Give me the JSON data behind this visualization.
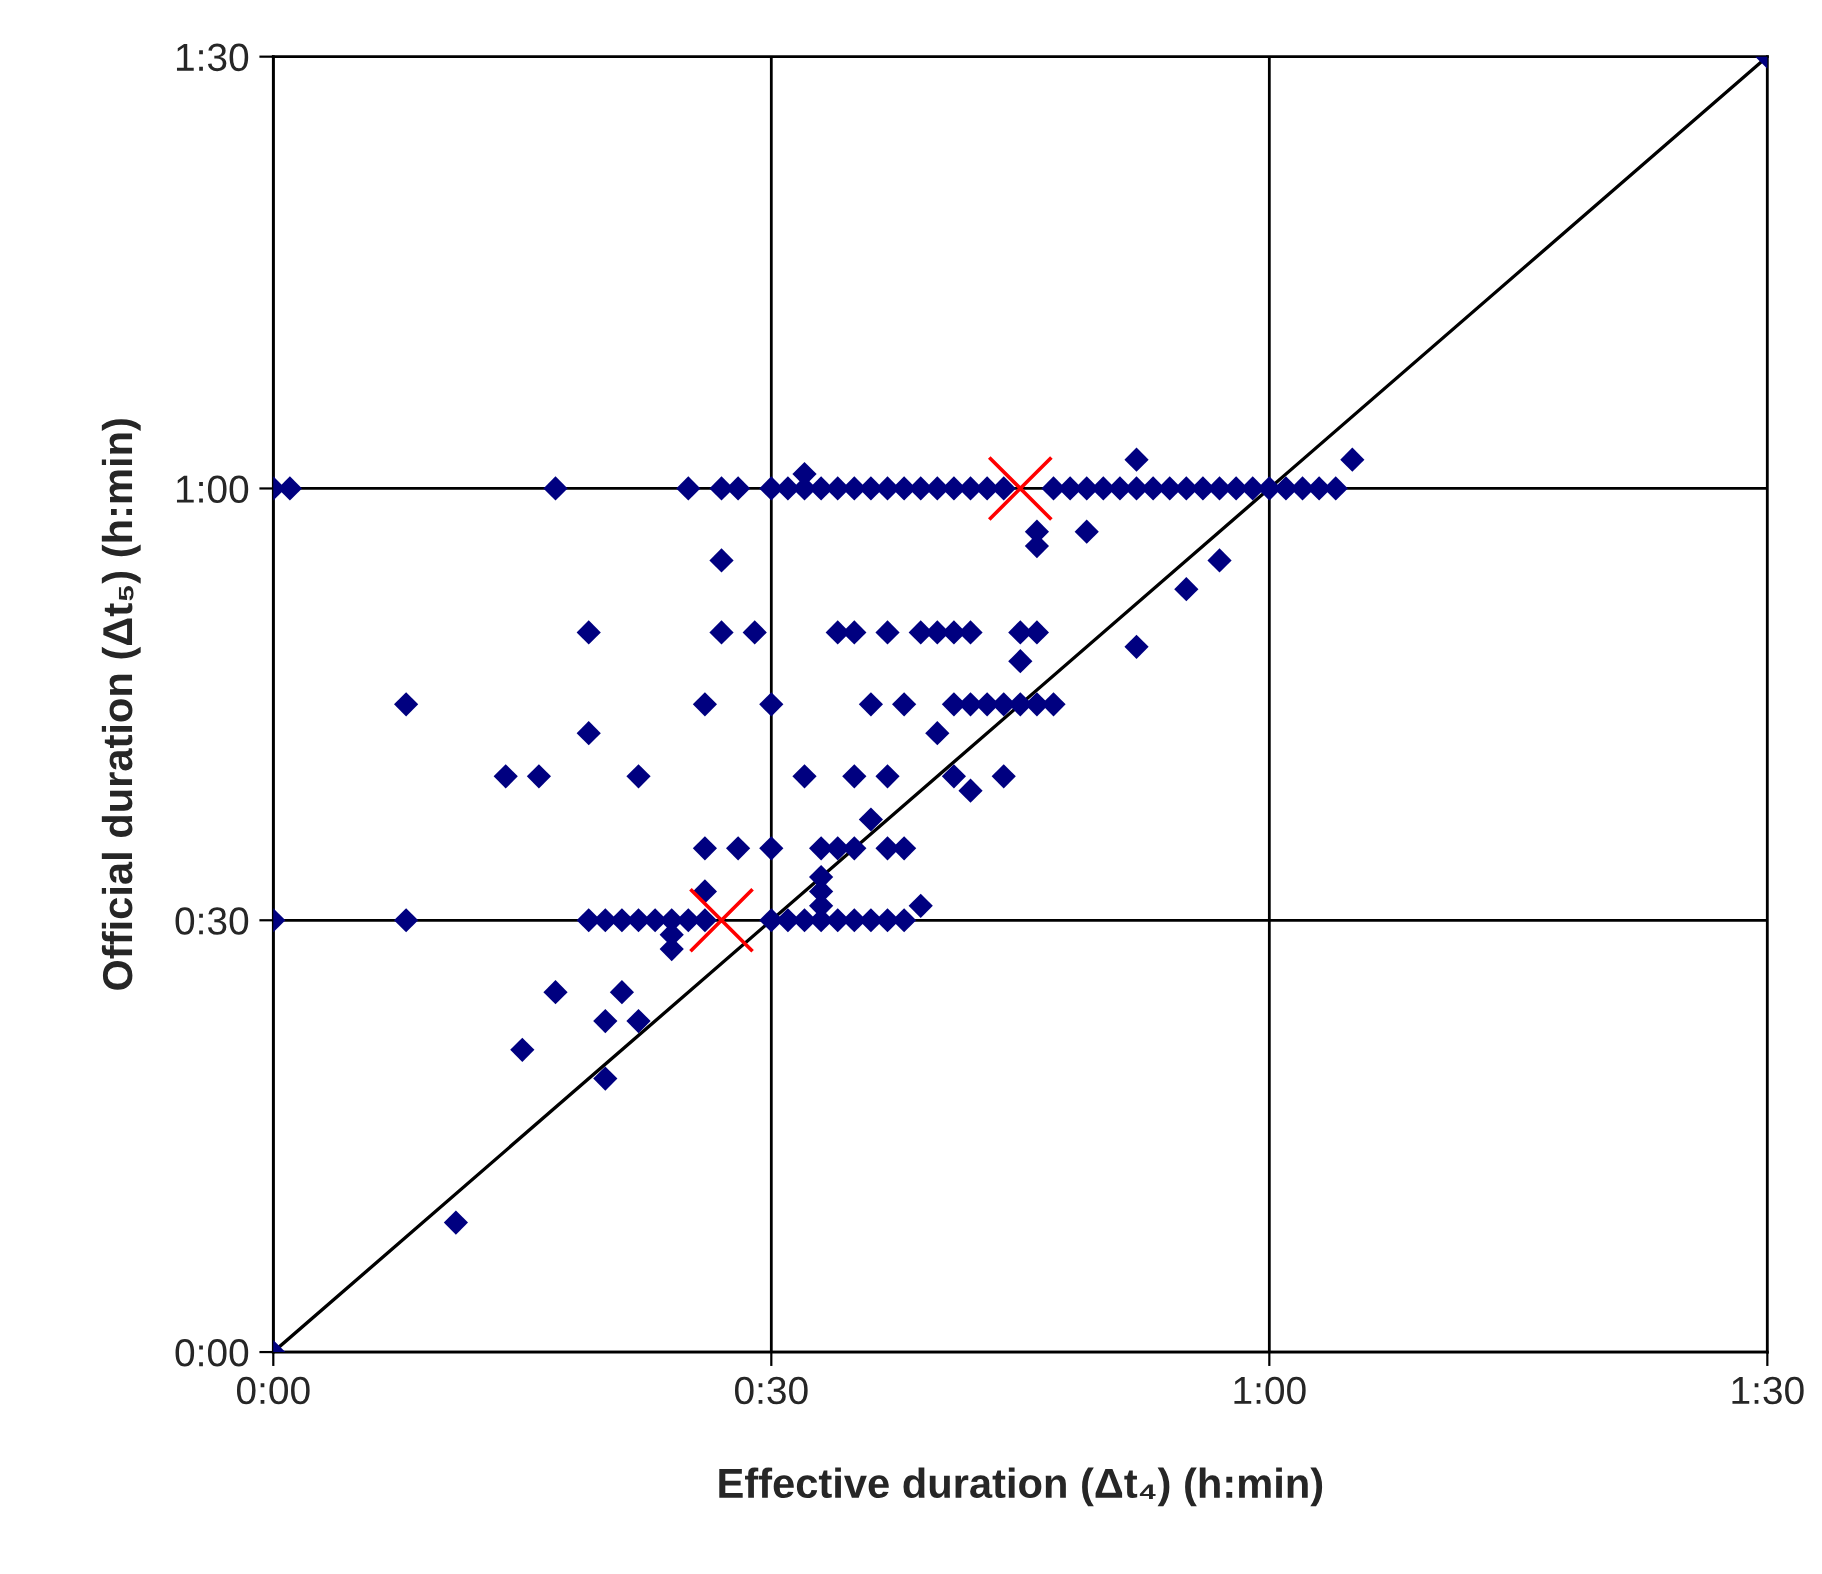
{
  "chart_data": {
    "type": "scatter",
    "xlabel": "Effective duration (Δt₄) (h:min)",
    "ylabel": "Official duration (Δt₅) (h:min)",
    "xlim": [
      0,
      90
    ],
    "ylim": [
      0,
      90
    ],
    "xticks": [
      {
        "value": 0,
        "label": "0:00"
      },
      {
        "value": 30,
        "label": "0:30"
      },
      {
        "value": 60,
        "label": "1:00"
      },
      {
        "value": 90,
        "label": "1:30"
      }
    ],
    "yticks": [
      {
        "value": 0,
        "label": "0:00"
      },
      {
        "value": 30,
        "label": "0:30"
      },
      {
        "value": 60,
        "label": "1:00"
      },
      {
        "value": 90,
        "label": "1:30"
      }
    ],
    "grid": true,
    "series": [
      {
        "marker": "diamond",
        "color": "#000080",
        "x": [
          0,
          1,
          17,
          25,
          27,
          28,
          30,
          31,
          32,
          33,
          34,
          35,
          36,
          37,
          38,
          39,
          40,
          41,
          42,
          43,
          44,
          47,
          48,
          49,
          50,
          51,
          52,
          53,
          54,
          55,
          56,
          57,
          58,
          59,
          60,
          61,
          62,
          63,
          64,
          32,
          52,
          65,
          46,
          49,
          46,
          27,
          57,
          55,
          52,
          19,
          27,
          29,
          34,
          35,
          37,
          39,
          40,
          41,
          42,
          45,
          46,
          45,
          8,
          26,
          30,
          36,
          38,
          41,
          42,
          43,
          44,
          45,
          46,
          47,
          19,
          40,
          14,
          16,
          22,
          32,
          35,
          37,
          41,
          44,
          42,
          36,
          26,
          28,
          30,
          33,
          34,
          35,
          37,
          38,
          33,
          26,
          33,
          33,
          39,
          0,
          8,
          19,
          20,
          21,
          22,
          23,
          24,
          25,
          26,
          30,
          31,
          32,
          33,
          34,
          35,
          36,
          37,
          38,
          24,
          24,
          17,
          21,
          20,
          22,
          15,
          20,
          11,
          0,
          90
        ],
        "values": [
          60,
          60,
          60,
          60,
          60,
          60,
          60,
          60,
          60,
          60,
          60,
          60,
          60,
          60,
          60,
          60,
          60,
          60,
          60,
          60,
          60,
          60,
          60,
          60,
          60,
          60,
          60,
          60,
          60,
          60,
          60,
          60,
          60,
          60,
          60,
          60,
          60,
          60,
          60,
          61,
          62,
          62,
          57,
          57,
          56,
          55,
          55,
          53,
          49,
          50,
          50,
          50,
          50,
          50,
          50,
          50,
          50,
          50,
          50,
          50,
          50,
          48,
          45,
          45,
          45,
          45,
          45,
          45,
          45,
          45,
          45,
          45,
          45,
          45,
          43,
          43,
          40,
          40,
          40,
          40,
          40,
          40,
          40,
          40,
          39,
          37,
          35,
          35,
          35,
          35,
          35,
          35,
          35,
          35,
          33,
          32,
          32,
          31,
          31,
          30,
          30,
          30,
          30,
          30,
          30,
          30,
          30,
          30,
          30,
          30,
          30,
          30,
          30,
          30,
          30,
          30,
          30,
          30,
          29,
          28,
          25,
          25,
          23,
          23,
          21,
          19,
          9,
          0,
          90
        ]
      },
      {
        "type": "scatter",
        "marker": "cross",
        "color": "#ff0000",
        "x": [
          27,
          45
        ],
        "values": [
          30,
          60
        ]
      },
      {
        "type": "line",
        "marker": "none",
        "color": "#000000",
        "x": [
          0,
          90
        ],
        "values": [
          0,
          90
        ]
      }
    ]
  }
}
